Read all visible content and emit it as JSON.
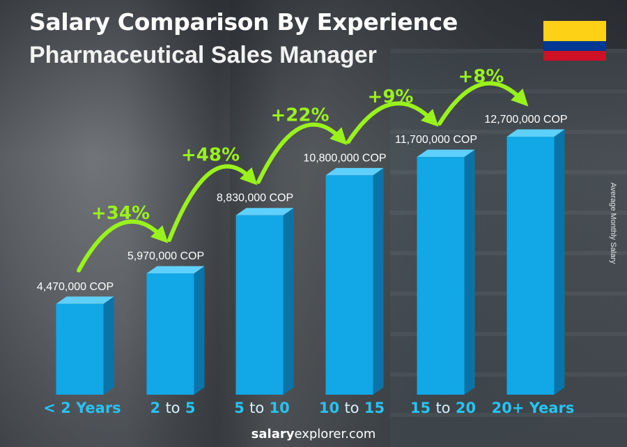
{
  "header": {
    "title": "Salary Comparison By Experience",
    "subtitle": "Pharmaceutical Sales Manager"
  },
  "flag": {
    "stripes": [
      "#FCD116",
      "#003893",
      "#CE1126"
    ]
  },
  "side_label": "Average Monthly Salary",
  "footer": {
    "brand_bold": "salary",
    "brand_rest": "explorer.com"
  },
  "colors": {
    "bar_front": "#12a7e6",
    "bar_side": "#0a74a8",
    "bar_top": "#5fd0fb",
    "growth": "#9af21c",
    "category": "#25c4f4"
  },
  "chart_data": {
    "type": "bar",
    "categories": [
      "< 2 Years",
      "2 to 5",
      "5 to 10",
      "10 to 15",
      "15 to 20",
      "20+ Years"
    ],
    "values": [
      4470000,
      5970000,
      8830000,
      10800000,
      11700000,
      12700000
    ],
    "value_labels": [
      "4,470,000 COP",
      "5,970,000 COP",
      "8,830,000 COP",
      "10,800,000 COP",
      "11,700,000 COP",
      "12,700,000 COP"
    ],
    "growth_labels": [
      "+34%",
      "+48%",
      "+22%",
      "+9%",
      "+8%"
    ],
    "unit": "COP",
    "ylabel": "Average Monthly Salary"
  }
}
